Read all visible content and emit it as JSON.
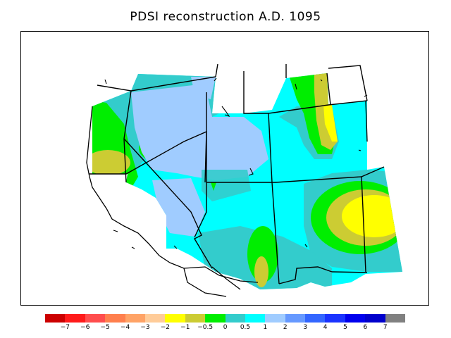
{
  "title": "PDSI reconstruction A.D. 1095",
  "legend": {
    "colors": [
      "#cc0000",
      "#ff1a1a",
      "#ff4d4d",
      "#ff7f4d",
      "#ffa366",
      "#ffcc99",
      "#ffff00",
      "#cccc33",
      "#00ee00",
      "#33cccc",
      "#00ffff",
      "#a0ccff",
      "#6699ff",
      "#3366ff",
      "#1a33ff",
      "#0000ee",
      "#0000cc",
      "#808080"
    ],
    "labels": [
      "−7",
      "−6",
      "−5",
      "−4",
      "−3",
      "−2",
      "−1",
      "−0.5",
      "0",
      "0.5",
      "1",
      "2",
      "3",
      "4",
      "5",
      "6",
      "7"
    ]
  },
  "colors": {
    "olive": "#cccc33",
    "yellow": "#ffff00",
    "green": "#00ee00",
    "teal": "#33cccc",
    "cyan": "#00ffff",
    "light_blue": "#a0ccff"
  }
}
